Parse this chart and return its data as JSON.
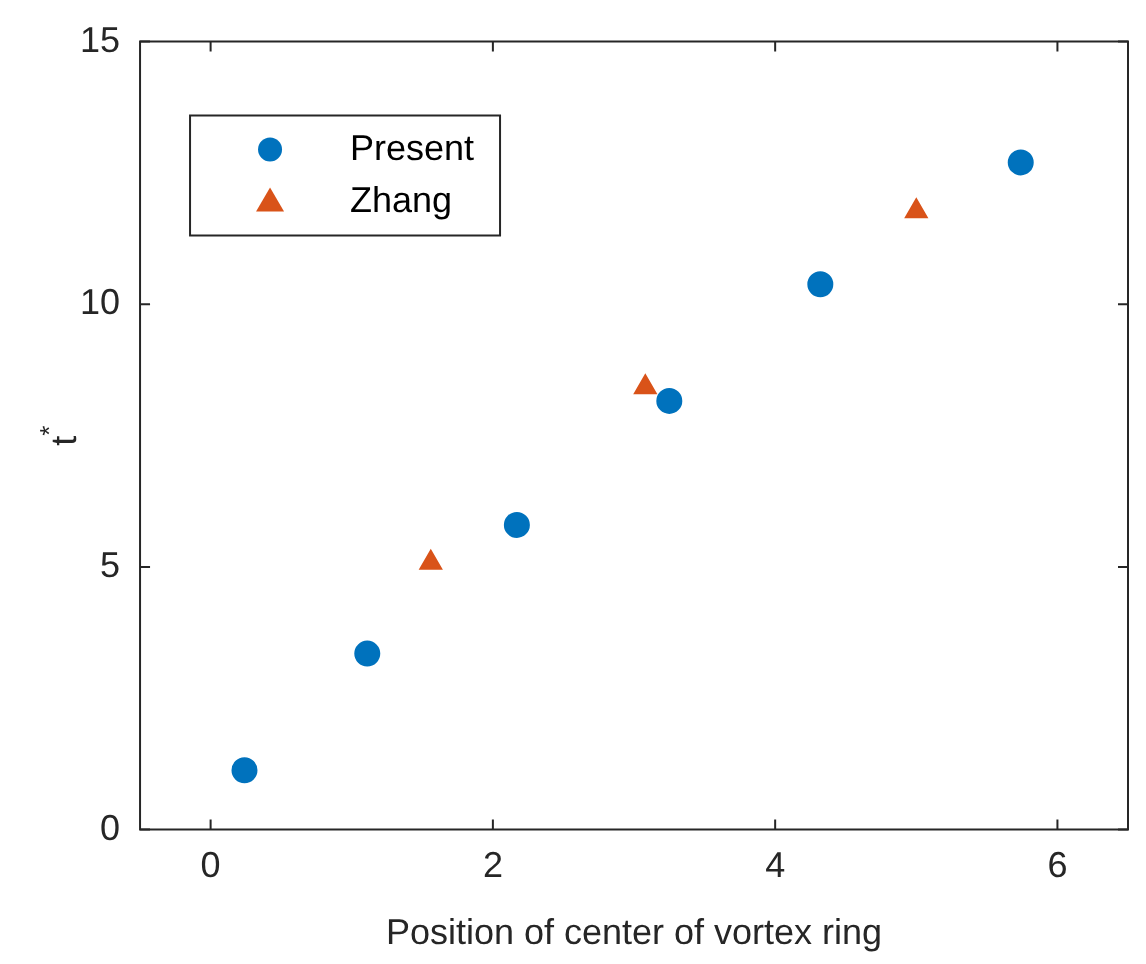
{
  "chart_data": {
    "type": "scatter",
    "xlabel": "Position of center of vortex ring",
    "ylabel": "t$^{*}$",
    "xlim": [
      -0.5,
      6.5
    ],
    "xticks": [
      0,
      2,
      4,
      6
    ],
    "ylim": [
      0,
      15
    ],
    "yticks": [
      0,
      5,
      10,
      15
    ],
    "grid": false,
    "legend": "top left",
    "series": [
      {
        "name": "Present",
        "color": "#0072bd",
        "marker": "circle",
        "x": [
          0.24,
          1.11,
          2.17,
          3.25,
          4.32,
          5.74
        ],
        "values": [
          1.13,
          3.35,
          5.8,
          8.16,
          10.38,
          12.7
        ]
      },
      {
        "name": "Zhang",
        "color": "#d95319",
        "marker": "triangle",
        "x": [
          1.56,
          3.08,
          5.0
        ],
        "values": [
          5.08,
          8.42,
          11.77
        ]
      }
    ]
  }
}
